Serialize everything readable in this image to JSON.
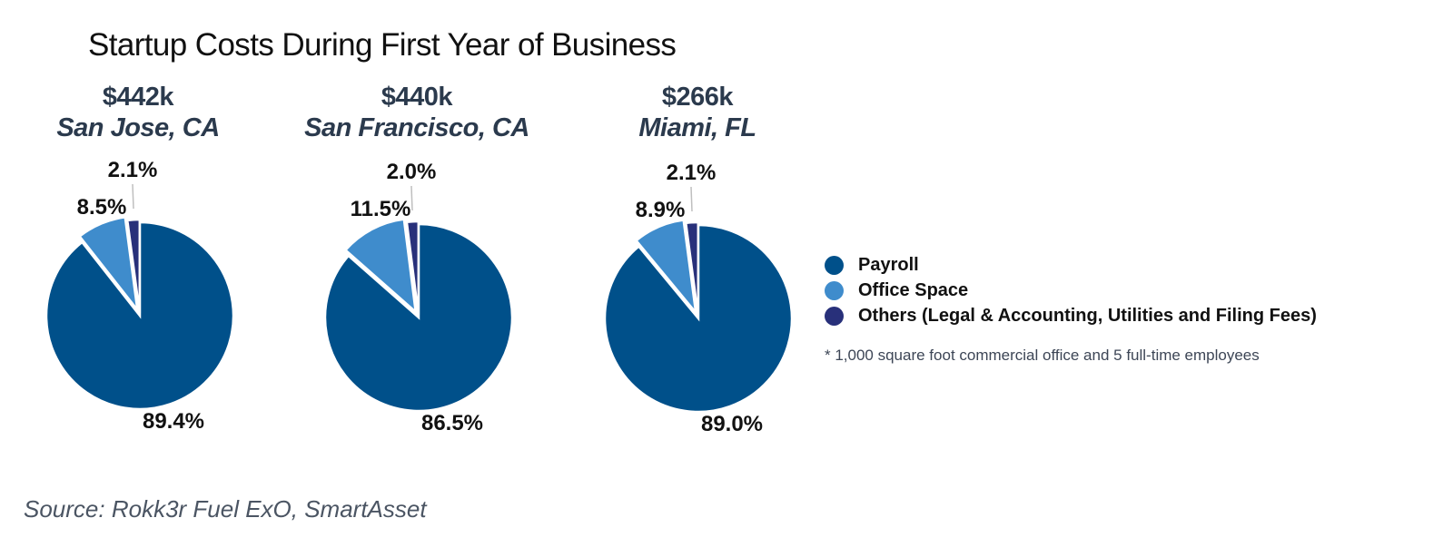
{
  "chart_data": {
    "type": "pie",
    "title": "Startup Costs During First Year of Business",
    "legend": {
      "position": "right",
      "entries": [
        {
          "name": "Payroll",
          "color": "#00508a"
        },
        {
          "name": "Office Space",
          "color": "#3f8ccc"
        },
        {
          "name": "Others (Legal & Accounting, Utilities and Filing Fees)",
          "color": "#28307a"
        }
      ]
    },
    "charts": [
      {
        "total": "$442k",
        "city": "San Jose, CA",
        "slices": [
          {
            "name": "Payroll",
            "value": 89.4,
            "label": "89.4%"
          },
          {
            "name": "Office Space",
            "value": 8.5,
            "label": "8.5%"
          },
          {
            "name": "Others (Legal & Accounting, Utilities and Filing Fees)",
            "value": 2.1,
            "label": "2.1%"
          }
        ]
      },
      {
        "total": "$440k",
        "city": "San Francisco, CA",
        "slices": [
          {
            "name": "Payroll",
            "value": 86.5,
            "label": "86.5%"
          },
          {
            "name": "Office Space",
            "value": 11.5,
            "label": "11.5%"
          },
          {
            "name": "Others (Legal & Accounting, Utilities and Filing Fees)",
            "value": 2.0,
            "label": "2.0%"
          }
        ]
      },
      {
        "total": "$266k",
        "city": "Miami, FL",
        "slices": [
          {
            "name": "Payroll",
            "value": 89.0,
            "label": "89.0%"
          },
          {
            "name": "Office Space",
            "value": 8.9,
            "label": "8.9%"
          },
          {
            "name": "Others (Legal & Accounting, Utilities and Filing Fees)",
            "value": 2.1,
            "label": "2.1%"
          }
        ]
      }
    ],
    "footnote": "* 1,000 square foot commercial office and 5 full-time employees",
    "source": "Source: Rokk3r Fuel ExO, SmartAsset"
  }
}
